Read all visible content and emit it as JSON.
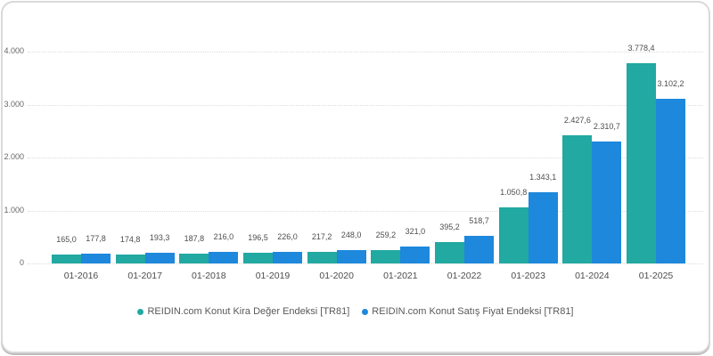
{
  "chart_data": {
    "type": "bar",
    "title": "",
    "categories": [
      "01-2016",
      "01-2017",
      "01-2018",
      "01-2019",
      "01-2020",
      "01-2021",
      "01-2022",
      "01-2023",
      "01-2024",
      "01-2025"
    ],
    "series": [
      {
        "key": "kira",
        "name": "REIDIN.com Konut Kira Değer Endeksi [TR81]",
        "color": "#21A9A2",
        "values": [
          165.0,
          174.8,
          187.8,
          196.5,
          217.2,
          259.2,
          395.2,
          1050.8,
          2427.6,
          3778.4
        ],
        "value_labels": [
          "165,0",
          "174,8",
          "187,8",
          "196,5",
          "217,2",
          "259,2",
          "395,2",
          "1.050,8",
          "2.427,6",
          "3.778,4"
        ]
      },
      {
        "key": "satis",
        "name": "REIDIN.com Konut Satış Fiyat Endeksi [TR81]",
        "color": "#1E88DC",
        "values": [
          177.8,
          193.3,
          216.0,
          226.0,
          248.0,
          321.0,
          518.7,
          1343.1,
          2310.7,
          3102.2
        ],
        "value_labels": [
          "177,8",
          "193,3",
          "216,0",
          "226,0",
          "248,0",
          "321,0",
          "518,7",
          "1.343,1",
          "2.310,7",
          "3.102,2"
        ]
      }
    ],
    "xlabel": "",
    "ylabel": "",
    "ylim": [
      0,
      4000
    ],
    "y_ticks": [
      {
        "value": 0,
        "label": "0"
      },
      {
        "value": 1000,
        "label": "1.000"
      },
      {
        "value": 2000,
        "label": "2.000"
      },
      {
        "value": 3000,
        "label": "3.000"
      },
      {
        "value": 4000,
        "label": "4.000"
      }
    ],
    "grid": "horizontal-dotted",
    "legend_position": "bottom"
  }
}
